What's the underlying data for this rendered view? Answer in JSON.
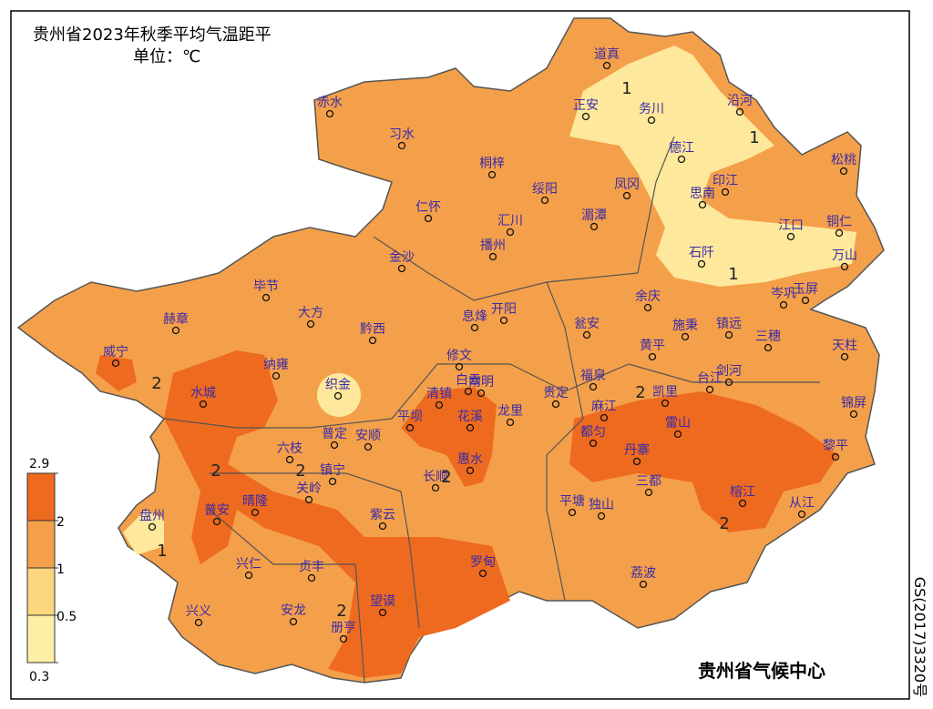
{
  "title": "贵州省2023年秋季平均气温距平",
  "unit": "单位：℃",
  "legend": {
    "ticks": [
      2.9,
      2,
      1,
      0.5,
      0.3
    ],
    "colors": [
      "#ee6a1f",
      "#f4a04a",
      "#fcd67f",
      "#fdf0a6"
    ]
  },
  "stations": [
    "道真",
    "务川",
    "正安",
    "沿河",
    "赤水",
    "习水",
    "桐梓",
    "绥阳",
    "凤冈",
    "德江",
    "印江",
    "松桃",
    "思南",
    "江口",
    "铜仁",
    "万山",
    "石阡",
    "仁怀",
    "汇川",
    "湄潭",
    "播州",
    "金沙",
    "毕节",
    "大方",
    "黔西",
    "赫章",
    "余庆",
    "岑巩",
    "玉屏",
    "息烽",
    "开阳",
    "瓮安",
    "施秉",
    "镇远",
    "三穗",
    "天柱",
    "黄平",
    "威宁",
    "纳雍",
    "修文",
    "福泉",
    "凯里",
    "台江",
    "剑河",
    "水城",
    "织金",
    "清镇",
    "白云",
    "南明",
    "贵定",
    "麻江",
    "锦屏",
    "平坝",
    "花溪",
    "龙里",
    "都匀",
    "雷山",
    "丹寨",
    "黎平",
    "六枝",
    "普定",
    "安顺",
    "惠水",
    "长顺",
    "镇宁",
    "关岭",
    "晴隆",
    "普安",
    "三都",
    "榕江",
    "从江",
    "平塘",
    "独山",
    "紫云",
    "盘州",
    "罗甸",
    "荔波",
    "兴仁",
    "贞丰",
    "望谟",
    "兴义",
    "安龙",
    "册亨"
  ],
  "contour_labels": [
    1,
    1,
    1,
    1,
    2,
    2,
    2,
    2,
    2,
    2,
    2
  ],
  "credit": "贵州省气候中心",
  "map_code": "GS(2017)3320号"
}
